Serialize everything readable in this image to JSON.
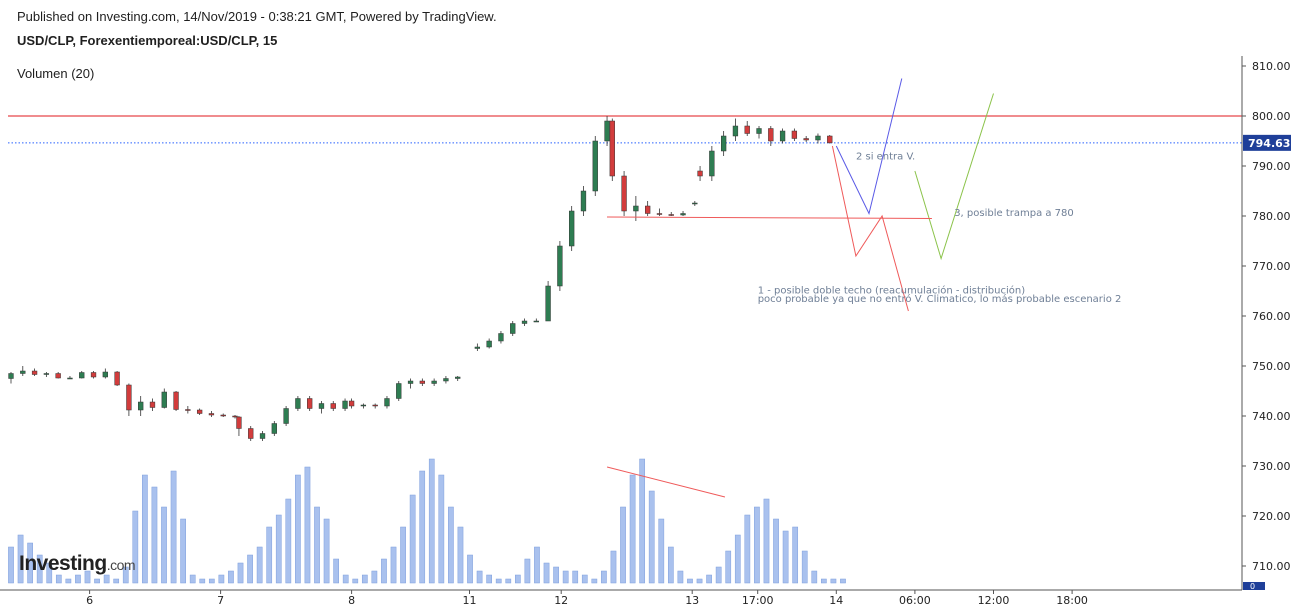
{
  "header": {
    "published": "Published on Investing.com, 14/Nov/2019 - 0:38:21 GMT, Powered by TradingView.",
    "symbol": "USD/CLP, Forexentiemporeal:USD/CLP, 15",
    "volume_label": "Volumen (20)"
  },
  "logo": {
    "brand": "Investing",
    "domain": ".com"
  },
  "colors": {
    "up": "#2e7d52",
    "down": "#d23c3c",
    "volume": "#a9c1ee",
    "resistance_line": "#e8474a",
    "price_line": "#2962ff",
    "scenario_red": "#ef5a5a",
    "scenario_blue": "#5a5ae6",
    "scenario_green": "#8bc34a",
    "volume_trend": "#ef5a5a"
  },
  "chart_data": {
    "type": "candlestick",
    "y_axis": {
      "min": 706,
      "max": 814,
      "ticks": [
        710,
        720,
        730,
        740,
        750,
        760,
        770,
        780,
        790,
        800,
        810
      ],
      "tick_labels": [
        "710.00",
        "720.00",
        "730.00",
        "740.00",
        "750.00",
        "760.00",
        "770.00",
        "780.00",
        "790.00",
        "800.00",
        "810.00"
      ]
    },
    "x_axis": {
      "ticks": [
        {
          "t": 6,
          "label": "6"
        },
        {
          "t": 16,
          "label": "7"
        },
        {
          "t": 26,
          "label": "8"
        },
        {
          "t": 35,
          "label": "11"
        },
        {
          "t": 42,
          "label": "12"
        },
        {
          "t": 52,
          "label": "13"
        },
        {
          "t": 57,
          "label": "17:00"
        },
        {
          "t": 63,
          "label": "14"
        },
        {
          "t": 69,
          "label": "06:00"
        },
        {
          "t": 75,
          "label": "12:00"
        },
        {
          "t": 81,
          "label": "18:00"
        }
      ]
    },
    "last_price": 794.63,
    "last_price_label": "794.63",
    "bottom_axis_label": "0",
    "resistance": 800,
    "candles": [
      [
        747.5,
        748.8,
        746.5,
        748.5
      ],
      [
        748.5,
        750,
        748,
        749
      ],
      [
        749,
        749.5,
        748,
        748.3
      ],
      [
        748.3,
        748.8,
        747.8,
        748.5
      ],
      [
        748.5,
        748.8,
        747.5,
        747.6
      ],
      [
        747.6,
        748,
        747.4,
        747.6
      ],
      [
        747.6,
        749,
        747.5,
        748.7
      ],
      [
        748.7,
        749,
        747.5,
        747.8
      ],
      [
        747.8,
        749.5,
        747.5,
        748.8
      ],
      [
        748.8,
        749,
        746,
        746.2
      ],
      [
        746.2,
        746.5,
        740,
        741.2
      ],
      [
        741.2,
        744,
        740,
        742.8
      ],
      [
        742.8,
        743.5,
        741,
        741.7
      ],
      [
        741.7,
        745.5,
        741.5,
        744.8
      ],
      [
        744.8,
        745,
        741,
        741.3
      ],
      [
        741.3,
        742,
        740.5,
        741.2
      ],
      [
        741.2,
        741.5,
        740.2,
        740.5
      ],
      [
        740.5,
        741,
        739.8,
        740.2
      ],
      [
        740.2,
        740.5,
        739.8,
        740
      ],
      [
        740,
        740.2,
        739.5,
        739.8
      ],
      [
        739.8,
        740,
        736,
        737.5
      ],
      [
        737.5,
        738,
        735,
        735.5
      ],
      [
        735.5,
        737,
        735,
        736.5
      ],
      [
        736.5,
        739,
        736,
        738.5
      ],
      [
        738.5,
        742,
        738,
        741.5
      ],
      [
        741.5,
        744,
        741,
        743.5
      ],
      [
        743.5,
        744,
        741,
        741.5
      ],
      [
        741.5,
        743,
        740.5,
        742.5
      ],
      [
        742.5,
        743,
        741,
        741.5
      ],
      [
        741.5,
        743.5,
        741,
        743
      ],
      [
        743,
        743.5,
        741.5,
        742
      ],
      [
        742,
        742.5,
        741.5,
        742.2
      ],
      [
        742.2,
        742.5,
        741.5,
        742
      ],
      [
        742,
        744,
        741.5,
        743.5
      ],
      [
        743.5,
        747,
        743,
        746.5
      ],
      [
        746.5,
        747.5,
        745.5,
        747
      ],
      [
        747,
        747.5,
        746,
        746.5
      ],
      [
        746.5,
        747.5,
        746,
        747
      ],
      [
        747,
        748,
        746.5,
        747.5
      ],
      [
        747.5,
        748,
        747,
        747.8
      ],
      [
        753.5,
        754.5,
        753,
        753.8
      ],
      [
        753.8,
        755.5,
        753.5,
        755
      ],
      [
        755,
        757,
        754.5,
        756.5
      ],
      [
        756.5,
        759,
        756,
        758.5
      ],
      [
        758.5,
        759.5,
        758,
        759
      ],
      [
        759,
        759.5,
        758.8,
        759
      ],
      [
        759,
        767,
        759,
        766
      ],
      [
        766,
        775,
        765,
        774
      ],
      [
        774,
        782,
        773,
        781
      ],
      [
        781,
        786,
        780,
        785
      ],
      [
        785,
        796,
        784,
        795
      ],
      [
        795,
        800,
        794,
        799
      ],
      [
        799,
        799.5,
        787,
        788
      ],
      [
        788,
        789,
        780,
        781
      ],
      [
        781,
        784,
        779,
        782
      ],
      [
        782,
        783,
        780,
        780.5
      ],
      [
        780.5,
        781.5,
        780,
        780.3
      ],
      [
        780.3,
        780.8,
        780,
        780.2
      ],
      [
        780.2,
        781,
        780,
        780.5
      ],
      [
        782.5,
        783,
        782,
        782.6
      ],
      [
        789,
        790,
        787,
        788
      ],
      [
        788,
        794,
        787,
        793
      ],
      [
        793,
        797,
        792,
        796
      ],
      [
        796,
        799.5,
        795,
        798
      ],
      [
        798,
        799,
        796,
        796.5
      ],
      [
        796.5,
        798,
        795.5,
        797.5
      ],
      [
        797.5,
        798,
        794,
        795
      ],
      [
        795,
        797.5,
        794.5,
        797
      ],
      [
        797,
        797.5,
        795,
        795.5
      ],
      [
        795.5,
        796,
        794.8,
        795.2
      ],
      [
        795.2,
        796.5,
        794.5,
        796
      ],
      [
        796,
        796.2,
        794.5,
        794.63
      ]
    ],
    "candle_times": [
      0.0,
      0.9,
      1.8,
      2.7,
      3.6,
      4.5,
      5.4,
      6.3,
      7.2,
      8.1,
      9.0,
      9.9,
      10.8,
      11.7,
      12.6,
      13.5,
      14.4,
      15.3,
      16.2,
      17.1,
      17.4,
      18.3,
      19.2,
      20.1,
      21.0,
      21.9,
      22.8,
      23.7,
      24.6,
      25.5,
      26.0,
      26.9,
      27.8,
      28.7,
      29.6,
      30.5,
      31.4,
      32.3,
      33.2,
      34.1,
      35.6,
      36.5,
      37.4,
      38.3,
      39.2,
      40.1,
      41.0,
      41.9,
      42.8,
      43.7,
      44.6,
      45.5,
      45.9,
      46.8,
      47.7,
      48.6,
      49.5,
      50.4,
      51.3,
      52.2,
      52.6,
      53.5,
      54.4,
      55.3,
      56.2,
      57.1,
      58.0,
      58.9,
      59.8,
      60.7,
      61.6,
      62.5
    ],
    "volume": {
      "max": 30,
      "values": [
        9,
        12,
        10,
        7,
        5,
        2,
        1,
        2,
        3,
        1,
        2,
        1,
        4,
        18,
        27,
        24,
        19,
        28,
        16,
        2,
        1,
        1,
        2,
        3,
        5,
        7,
        9,
        14,
        17,
        21,
        27,
        29,
        19,
        16,
        6,
        2,
        1,
        2,
        3,
        6,
        9,
        14,
        22,
        28,
        31,
        27,
        19,
        14,
        7,
        3,
        2,
        1,
        1,
        2,
        6,
        9,
        5,
        4,
        3,
        3,
        2,
        1,
        3,
        8,
        19,
        27,
        31,
        23,
        16,
        9,
        3,
        1,
        1,
        2,
        4,
        8,
        12,
        17,
        19,
        21,
        16,
        13,
        14,
        8,
        3,
        1,
        1,
        1
      ],
      "start": 0.0,
      "step": 0.73
    }
  },
  "annotations": [
    {
      "text": "2 si entra V.",
      "t": 64.5,
      "price": 791.3,
      "color": "#6f7f96"
    },
    {
      "text": "3, posible trampa a 780",
      "t": 72.0,
      "price": 780.0,
      "color": "#6f7f96"
    },
    {
      "text": "1 - posible doble techo (reacumulación - distribución)",
      "t": 57.0,
      "price": 764.5,
      "color": "#6f7f96"
    },
    {
      "text": "poco probable ya que no entró V. Climatico, lo más probable escenario 2",
      "t": 57.0,
      "price": 762.8,
      "color": "#6f7f96"
    }
  ],
  "scenario_lines": [
    {
      "name": "red-scenario",
      "color": "#ef5a5a",
      "points": [
        [
          62.7,
          794
        ],
        [
          64.5,
          772
        ],
        [
          66.5,
          780
        ],
        [
          68.5,
          761
        ]
      ]
    },
    {
      "name": "blue-scenario",
      "color": "#5a5ae6",
      "points": [
        [
          63.0,
          794
        ],
        [
          65.5,
          780.5
        ],
        [
          68.0,
          807.5
        ]
      ]
    },
    {
      "name": "green-scenario",
      "color": "#8bc34a",
      "points": [
        [
          69.0,
          789
        ],
        [
          71.0,
          771.5
        ],
        [
          75.0,
          804.5
        ]
      ]
    },
    {
      "name": "support-780",
      "color": "#ef5a5a",
      "points": [
        [
          45.5,
          779.8
        ],
        [
          70.3,
          779.5
        ]
      ]
    }
  ],
  "volume_trend_line": {
    "start": [
      45.5,
      29
    ],
    "end": [
      54.5,
      21.5
    ]
  }
}
